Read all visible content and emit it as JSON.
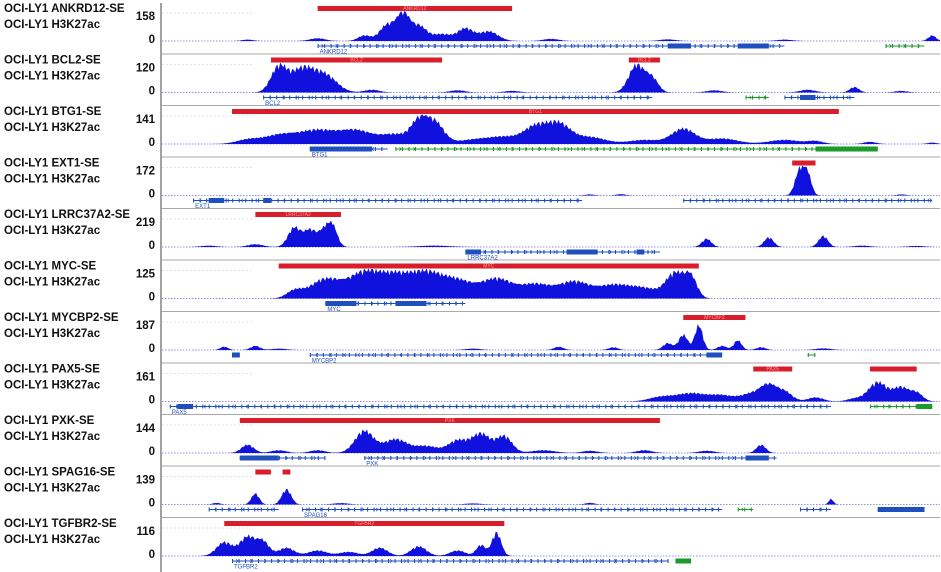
{
  "colors": {
    "signal": "#1111dd",
    "se_bar": "#d81e2a",
    "gene_blue": "#1f4fbf",
    "gene_green": "#1c9a2a",
    "divider": "#8c8c8c"
  },
  "panels": [
    {
      "se_label": "OCI-LY1 ANKRD12-SE",
      "signal_label": "OCI-LY1 H3K27ac",
      "ymax": "158",
      "ymin": "0",
      "se_bars": [
        {
          "name": "ANKRD12",
          "start": 0.2,
          "end": 0.45
        }
      ],
      "peaks": [
        [
          0.11,
          0.05,
          0.007
        ],
        [
          0.2,
          0.1,
          0.01
        ],
        [
          0.26,
          0.2,
          0.008
        ],
        [
          0.29,
          0.6,
          0.01
        ],
        [
          0.31,
          0.95,
          0.008
        ],
        [
          0.33,
          0.55,
          0.01
        ],
        [
          0.36,
          0.25,
          0.012
        ],
        [
          0.39,
          0.45,
          0.01
        ],
        [
          0.42,
          0.35,
          0.012
        ],
        [
          0.5,
          0.08,
          0.01
        ],
        [
          0.65,
          0.06,
          0.01
        ],
        [
          0.8,
          0.05,
          0.01
        ],
        [
          0.99,
          0.2,
          0.005
        ]
      ],
      "genes": [
        {
          "name": "ANKRD12",
          "start": 0.2,
          "end": 0.8,
          "color": "blue",
          "dir": "right",
          "blocks": [
            [
              0.65,
              0.68
            ],
            [
              0.74,
              0.78
            ]
          ]
        },
        {
          "start": 0.93,
          "end": 0.98,
          "color": "green",
          "dir": "right",
          "blocks": []
        }
      ]
    },
    {
      "se_label": "OCI-LY1 BCL2-SE",
      "signal_label": "OCI-LY1 H3K27ac",
      "ymax": "120",
      "ymin": "0",
      "se_bars": [
        {
          "name": "BCL2",
          "start": 0.14,
          "end": 0.36
        },
        {
          "name": "BCL2",
          "start": 0.6,
          "end": 0.64
        }
      ],
      "peaks": [
        [
          0.15,
          0.9,
          0.01
        ],
        [
          0.18,
          0.85,
          0.015
        ],
        [
          0.21,
          0.6,
          0.015
        ],
        [
          0.27,
          0.1,
          0.01
        ],
        [
          0.38,
          0.08,
          0.01
        ],
        [
          0.45,
          0.06,
          0.01
        ],
        [
          0.61,
          1.0,
          0.01
        ],
        [
          0.63,
          0.5,
          0.008
        ],
        [
          0.71,
          0.08,
          0.01
        ],
        [
          0.83,
          0.1,
          0.01
        ],
        [
          0.89,
          0.2,
          0.006
        ],
        [
          0.95,
          0.06,
          0.008
        ]
      ],
      "genes": [
        {
          "name": "BCL2",
          "start": 0.13,
          "end": 0.63,
          "color": "blue",
          "dir": "left",
          "blocks": []
        },
        {
          "start": 0.75,
          "end": 0.78,
          "color": "green",
          "dir": "right",
          "blocks": []
        },
        {
          "start": 0.8,
          "end": 0.89,
          "color": "blue",
          "dir": "left",
          "blocks": [
            [
              0.82,
              0.84
            ]
          ]
        }
      ]
    },
    {
      "se_label": "OCI-LY1 BTG1-SE",
      "signal_label": "OCI-LY1 H3K27ac",
      "ymax": "141",
      "ymin": "0",
      "se_bars": [
        {
          "name": "BTG1",
          "start": 0.09,
          "end": 0.87
        }
      ],
      "peaks": [
        [
          0.11,
          0.15,
          0.015
        ],
        [
          0.15,
          0.3,
          0.02
        ],
        [
          0.2,
          0.5,
          0.025
        ],
        [
          0.25,
          0.45,
          0.02
        ],
        [
          0.3,
          0.35,
          0.02
        ],
        [
          0.33,
          0.7,
          0.01
        ],
        [
          0.35,
          0.8,
          0.012
        ],
        [
          0.4,
          0.15,
          0.02
        ],
        [
          0.44,
          0.25,
          0.02
        ],
        [
          0.48,
          0.6,
          0.015
        ],
        [
          0.51,
          0.7,
          0.015
        ],
        [
          0.55,
          0.25,
          0.02
        ],
        [
          0.62,
          0.15,
          0.02
        ],
        [
          0.67,
          0.55,
          0.015
        ],
        [
          0.72,
          0.2,
          0.02
        ],
        [
          0.8,
          0.15,
          0.02
        ],
        [
          0.84,
          0.1,
          0.01
        ],
        [
          0.91,
          0.08,
          0.008
        ],
        [
          0.99,
          0.05,
          0.006
        ]
      ],
      "genes": [
        {
          "name": "BTG1",
          "start": 0.19,
          "end": 0.29,
          "color": "blue",
          "dir": "left",
          "blocks": [
            [
              0.19,
              0.27
            ]
          ]
        },
        {
          "start": 0.3,
          "end": 0.92,
          "color": "green",
          "dir": "right",
          "blocks": [
            [
              0.84,
              0.92
            ]
          ]
        }
      ]
    },
    {
      "se_label": "OCI-LY1 EXT1-SE",
      "signal_label": "OCI-LY1 H3K27ac",
      "ymax": "172",
      "ymin": "0",
      "se_bars": [
        {
          "name": "",
          "start": 0.81,
          "end": 0.84
        }
      ],
      "peaks": [
        [
          0.55,
          0.04,
          0.006
        ],
        [
          0.59,
          0.05,
          0.006
        ],
        [
          0.82,
          0.95,
          0.006
        ],
        [
          0.83,
          0.7,
          0.005
        ],
        [
          0.95,
          0.04,
          0.006
        ]
      ],
      "genes": [
        {
          "name": "EXT1",
          "start": 0.04,
          "end": 0.54,
          "color": "blue",
          "dir": "left",
          "blocks": [
            [
              0.06,
              0.08
            ],
            [
              0.13,
              0.14
            ]
          ]
        },
        {
          "start": 0.67,
          "end": 0.99,
          "color": "blue",
          "dir": "left",
          "blocks": []
        }
      ]
    },
    {
      "se_label": "OCI-LY1 LRRC37A2-SE",
      "signal_label": "OCI-LY1 H3K27ac",
      "ymax": "219",
      "ymin": "0",
      "se_bars": [
        {
          "name": "LRRC37A2",
          "start": 0.12,
          "end": 0.23
        }
      ],
      "peaks": [
        [
          0.06,
          0.05,
          0.01
        ],
        [
          0.12,
          0.1,
          0.01
        ],
        [
          0.17,
          0.7,
          0.008
        ],
        [
          0.19,
          0.6,
          0.008
        ],
        [
          0.21,
          0.65,
          0.008
        ],
        [
          0.22,
          0.55,
          0.006
        ],
        [
          0.35,
          0.05,
          0.02
        ],
        [
          0.7,
          0.3,
          0.006
        ],
        [
          0.78,
          0.35,
          0.006
        ],
        [
          0.85,
          0.4,
          0.006
        ],
        [
          0.9,
          0.05,
          0.01
        ],
        [
          0.97,
          0.04,
          0.01
        ]
      ],
      "genes": [
        {
          "name": "LRRC37A2",
          "start": 0.39,
          "end": 0.64,
          "color": "blue",
          "dir": "right",
          "blocks": [
            [
              0.39,
              0.41
            ],
            [
              0.52,
              0.56
            ],
            [
              0.61,
              0.62
            ]
          ]
        }
      ]
    },
    {
      "se_label": "OCI-LY1 MYC-SE",
      "signal_label": "OCI-LY1 H3K27ac",
      "ymax": "125",
      "ymin": "0",
      "se_bars": [
        {
          "name": "MYC",
          "start": 0.15,
          "end": 0.69
        }
      ],
      "peaks": [
        [
          0.17,
          0.25,
          0.01
        ],
        [
          0.21,
          0.7,
          0.02
        ],
        [
          0.26,
          0.9,
          0.02
        ],
        [
          0.3,
          0.75,
          0.02
        ],
        [
          0.34,
          0.85,
          0.02
        ],
        [
          0.38,
          0.6,
          0.02
        ],
        [
          0.43,
          0.7,
          0.02
        ],
        [
          0.48,
          0.5,
          0.02
        ],
        [
          0.53,
          0.6,
          0.02
        ],
        [
          0.58,
          0.45,
          0.02
        ],
        [
          0.62,
          0.35,
          0.02
        ],
        [
          0.66,
          0.9,
          0.012
        ],
        [
          0.68,
          0.7,
          0.008
        ]
      ],
      "genes": [
        {
          "name": "MYC",
          "start": 0.21,
          "end": 0.39,
          "color": "blue",
          "dir": "right",
          "blocks": [
            [
              0.21,
              0.25
            ],
            [
              0.3,
              0.34
            ]
          ]
        }
      ]
    },
    {
      "se_label": "OCI-LY1 MYCBP2-SE",
      "signal_label": "OCI-LY1 H3K27ac",
      "ymax": "187",
      "ymin": "0",
      "se_bars": [
        {
          "name": "MYCBP2",
          "start": 0.67,
          "end": 0.75
        }
      ],
      "peaks": [
        [
          0.08,
          0.12,
          0.005
        ],
        [
          0.12,
          0.15,
          0.006
        ],
        [
          0.15,
          0.05,
          0.01
        ],
        [
          0.4,
          0.05,
          0.01
        ],
        [
          0.51,
          0.12,
          0.006
        ],
        [
          0.58,
          0.1,
          0.006
        ],
        [
          0.65,
          0.25,
          0.006
        ],
        [
          0.67,
          0.55,
          0.006
        ],
        [
          0.69,
          0.9,
          0.005
        ],
        [
          0.72,
          0.15,
          0.006
        ],
        [
          0.74,
          0.35,
          0.005
        ],
        [
          0.77,
          0.1,
          0.006
        ],
        [
          0.85,
          0.06,
          0.01
        ]
      ],
      "genes": [
        {
          "start": 0.09,
          "end": 0.1,
          "color": "blue",
          "dir": "left",
          "blocks": [
            [
              0.09,
              0.1
            ]
          ]
        },
        {
          "name": "MYCBP2",
          "start": 0.19,
          "end": 0.72,
          "color": "blue",
          "dir": "left",
          "blocks": [
            [
              0.7,
              0.72
            ]
          ]
        },
        {
          "start": 0.83,
          "end": 0.84,
          "color": "green",
          "dir": "right",
          "blocks": []
        }
      ]
    },
    {
      "se_label": "OCI-LY1 PAX5-SE",
      "signal_label": "OCI-LY1 H3K27ac",
      "ymax": "161",
      "ymin": "0",
      "se_bars": [
        {
          "name": "PAX5",
          "start": 0.76,
          "end": 0.81
        },
        {
          "name": "",
          "start": 0.91,
          "end": 0.97
        }
      ],
      "peaks": [
        [
          0.64,
          0.15,
          0.015
        ],
        [
          0.68,
          0.3,
          0.02
        ],
        [
          0.72,
          0.2,
          0.015
        ],
        [
          0.76,
          0.3,
          0.015
        ],
        [
          0.78,
          0.5,
          0.01
        ],
        [
          0.8,
          0.35,
          0.01
        ],
        [
          0.84,
          0.15,
          0.01
        ],
        [
          0.89,
          0.1,
          0.01
        ],
        [
          0.92,
          0.7,
          0.012
        ],
        [
          0.95,
          0.5,
          0.01
        ],
        [
          0.97,
          0.3,
          0.008
        ]
      ],
      "genes": [
        {
          "name": "PAX5",
          "start": 0.01,
          "end": 0.86,
          "color": "blue",
          "dir": "left",
          "blocks": [
            [
              0.02,
              0.04
            ]
          ]
        },
        {
          "start": 0.91,
          "end": 0.99,
          "color": "green",
          "dir": "right",
          "blocks": [
            [
              0.97,
              0.99
            ]
          ]
        }
      ]
    },
    {
      "se_label": "OCI-LY1 PXK-SE",
      "signal_label": "OCI-LY1 H3K27ac",
      "ymax": "144",
      "ymin": "0",
      "se_bars": [
        {
          "name": "PXK",
          "start": 0.1,
          "end": 0.64
        }
      ],
      "peaks": [
        [
          0.11,
          0.3,
          0.008
        ],
        [
          0.15,
          0.1,
          0.01
        ],
        [
          0.2,
          0.1,
          0.01
        ],
        [
          0.26,
          0.8,
          0.012
        ],
        [
          0.3,
          0.5,
          0.015
        ],
        [
          0.34,
          0.25,
          0.015
        ],
        [
          0.38,
          0.45,
          0.012
        ],
        [
          0.41,
          0.7,
          0.012
        ],
        [
          0.44,
          0.6,
          0.01
        ],
        [
          0.49,
          0.1,
          0.015
        ],
        [
          0.55,
          0.08,
          0.01
        ],
        [
          0.62,
          0.1,
          0.01
        ],
        [
          0.7,
          0.08,
          0.01
        ],
        [
          0.77,
          0.3,
          0.006
        ]
      ],
      "genes": [
        {
          "start": 0.1,
          "end": 0.21,
          "color": "blue",
          "dir": "right",
          "blocks": [
            [
              0.1,
              0.15
            ]
          ]
        },
        {
          "name": "PXK",
          "start": 0.26,
          "end": 0.79,
          "color": "blue",
          "dir": "right",
          "blocks": [
            [
              0.75,
              0.78
            ]
          ]
        }
      ]
    },
    {
      "se_label": "OCI-LY1 SPAG16-SE",
      "signal_label": "OCI-LY1 H3K27ac",
      "ymax": "139",
      "ymin": "0",
      "se_bars": [
        {
          "name": "",
          "start": 0.12,
          "end": 0.14
        },
        {
          "name": "",
          "start": 0.155,
          "end": 0.165
        }
      ],
      "peaks": [
        [
          0.07,
          0.06,
          0.005
        ],
        [
          0.12,
          0.4,
          0.005
        ],
        [
          0.16,
          0.55,
          0.006
        ],
        [
          0.23,
          0.05,
          0.01
        ],
        [
          0.4,
          0.04,
          0.01
        ],
        [
          0.55,
          0.06,
          0.006
        ],
        [
          0.86,
          0.2,
          0.003
        ]
      ],
      "genes": [
        {
          "start": 0.06,
          "end": 0.15,
          "color": "blue",
          "dir": "left",
          "blocks": []
        },
        {
          "name": "SPAG16",
          "start": 0.18,
          "end": 0.72,
          "color": "blue",
          "dir": "right",
          "blocks": []
        },
        {
          "start": 0.74,
          "end": 0.76,
          "color": "green",
          "dir": "right",
          "blocks": []
        },
        {
          "start": 0.82,
          "end": 0.86,
          "color": "blue",
          "dir": "left",
          "blocks": []
        },
        {
          "start": 0.92,
          "end": 0.98,
          "color": "blue",
          "dir": "left",
          "blocks": [
            [
              0.92,
              0.98
            ]
          ]
        }
      ]
    },
    {
      "se_label": "OCI-LY1 TGFBR2-SE",
      "signal_label": "OCI-LY1 H3K27ac",
      "ymax": "116",
      "ymin": "0",
      "se_bars": [
        {
          "name": "TGFBR2",
          "start": 0.08,
          "end": 0.44
        }
      ],
      "peaks": [
        [
          0.08,
          0.5,
          0.01
        ],
        [
          0.11,
          0.7,
          0.01
        ],
        [
          0.13,
          0.5,
          0.008
        ],
        [
          0.16,
          0.3,
          0.01
        ],
        [
          0.2,
          0.2,
          0.012
        ],
        [
          0.24,
          0.15,
          0.012
        ],
        [
          0.28,
          0.3,
          0.01
        ],
        [
          0.33,
          0.35,
          0.01
        ],
        [
          0.38,
          0.2,
          0.01
        ],
        [
          0.41,
          0.4,
          0.006
        ],
        [
          0.43,
          0.85,
          0.006
        ]
      ],
      "genes": [
        {
          "name": "TGFBR2",
          "start": 0.09,
          "end": 0.65,
          "color": "blue",
          "dir": "right",
          "blocks": []
        },
        {
          "start": 0.66,
          "end": 0.68,
          "color": "green",
          "dir": "right",
          "blocks": [
            [
              0.66,
              0.68
            ]
          ]
        }
      ]
    }
  ]
}
